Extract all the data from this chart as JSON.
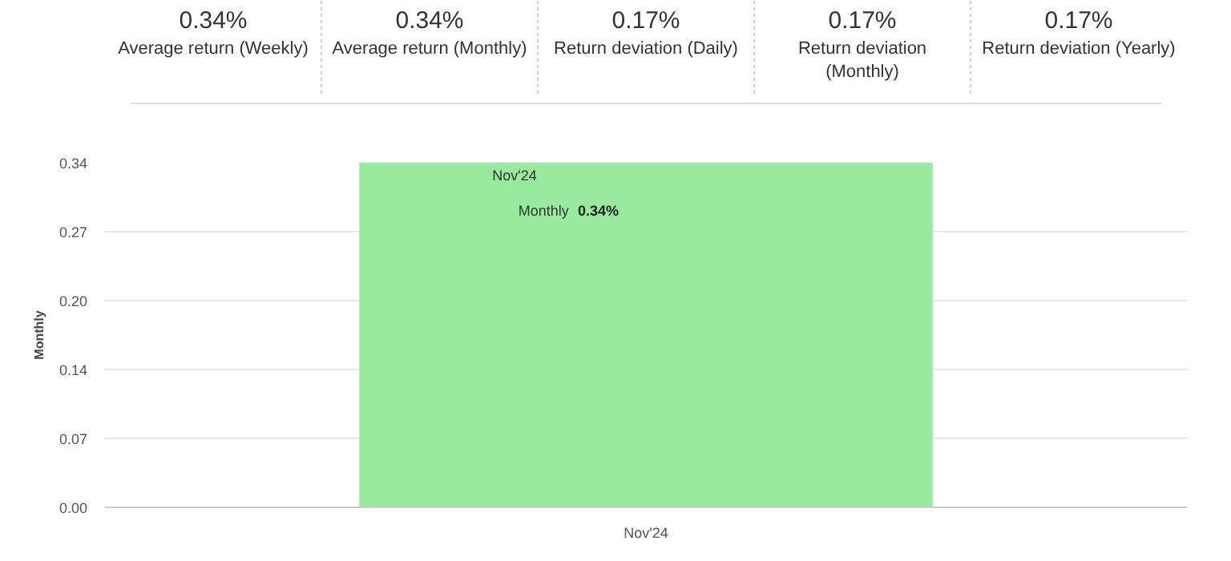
{
  "chart_data": [
    {
      "type": "other",
      "annotations": [
        "0.34%",
        "Average return (Weekly)",
        "0.34%",
        "Average return (Monthly)",
        "0.17%",
        "Return deviation (Daily)",
        "0.17%",
        "Return deviation (Monthly)",
        "0.17%",
        "Return deviation (Yearly)"
      ]
    },
    {
      "type": "bar",
      "ylabel": "Monthly",
      "categories": [
        "Nov'24"
      ],
      "series": [
        {
          "name": "Monthly",
          "color": "#98eb9e",
          "values": [
            0.34
          ],
          "value_labels": [
            "0.34%"
          ]
        }
      ],
      "ylim": [
        0,
        0.34
      ],
      "yticks": [
        {
          "value": 0,
          "label": "0.00"
        },
        {
          "value": 0.068,
          "label": "0.07"
        },
        {
          "value": 0.136,
          "label": "0.14"
        },
        {
          "value": 0.204,
          "label": "0.20"
        },
        {
          "value": 0.272,
          "label": "0.27"
        },
        {
          "value": 0.34,
          "label": "0.34"
        }
      ],
      "grid": "y"
    }
  ]
}
